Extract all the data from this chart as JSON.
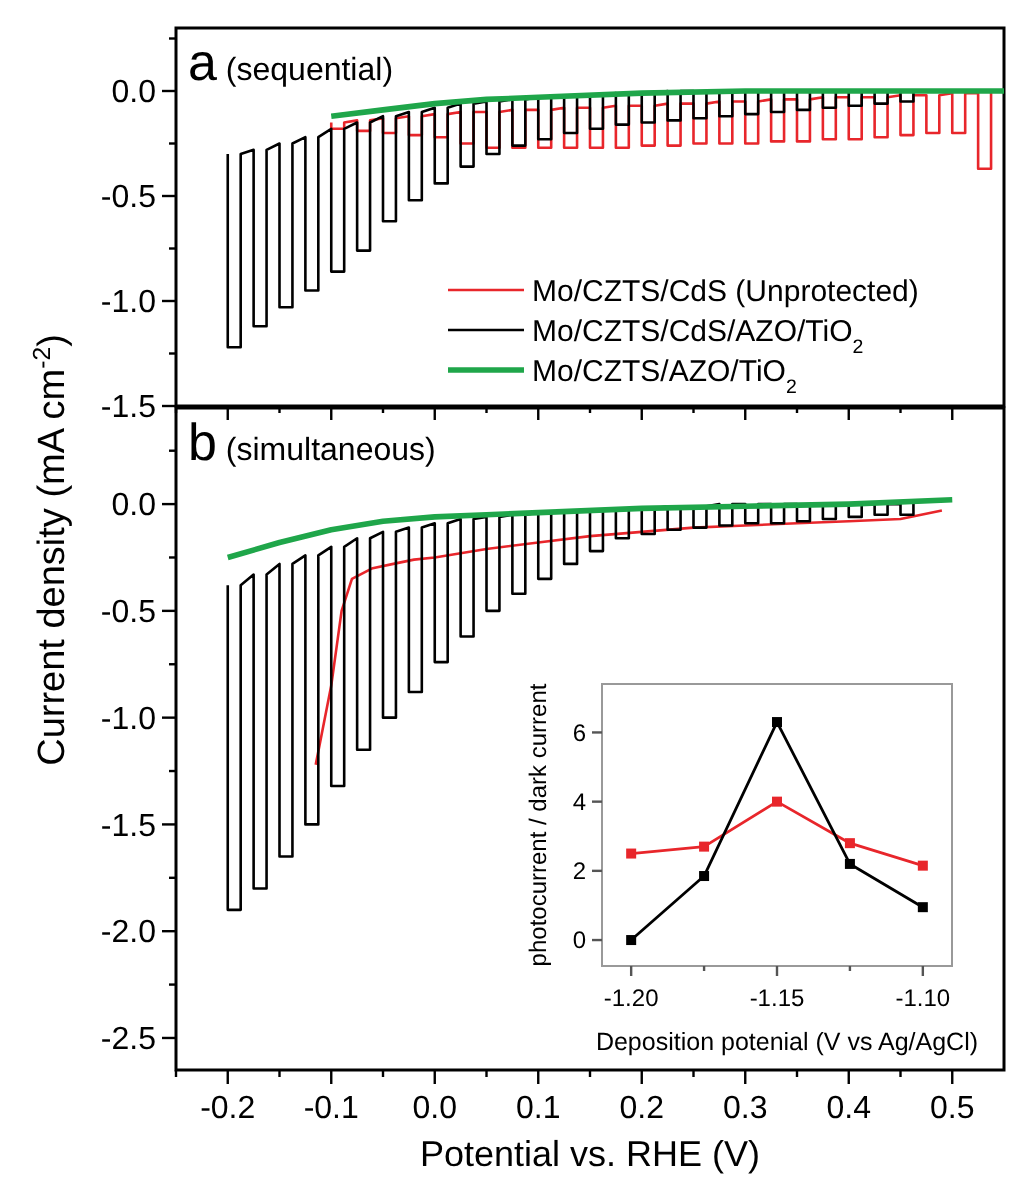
{
  "chart_data": [
    {
      "type": "line",
      "title": "a (sequential)",
      "xlim": [
        -0.25,
        0.55
      ],
      "ylim": [
        -1.5,
        0.3
      ],
      "tick_labels": "y",
      "legend": "bottom right",
      "xticks": [
        {
          "value": -0.25,
          "label": null
        },
        -0.2,
        {
          "value": -0.15,
          "label": null
        },
        -0.1,
        {
          "value": -0.05,
          "label": null
        },
        0,
        {
          "value": 0.05,
          "label": null
        },
        0.1,
        {
          "value": 0.15,
          "label": null
        },
        0.2,
        {
          "value": 0.25,
          "label": null
        },
        0.3,
        {
          "value": 0.35,
          "label": null
        },
        0.4,
        {
          "value": 0.45,
          "label": null
        },
        0.5
      ],
      "yticks": [
        {
          "value": 0.25,
          "label": null
        },
        {
          "value": 0,
          "label": "0.0"
        },
        {
          "value": -0.25,
          "label": null
        },
        {
          "value": -0.5,
          "label": "-0.5"
        },
        {
          "value": -0.75,
          "label": null
        },
        {
          "value": -1,
          "label": "-1.0"
        },
        {
          "value": -1.25,
          "label": null
        },
        {
          "value": -1.5,
          "label": "-1.5"
        }
      ],
      "series": [
        {
          "name": "Mo/CZTS/CdS (Unprotected)",
          "color": "#e8262b",
          "x": [
            -0.1,
            -0.1,
            -0.0875,
            -0.0875,
            -0.075,
            -0.075,
            -0.0625,
            -0.0625,
            -0.05,
            -0.05,
            -0.0375,
            -0.0375,
            -0.025,
            -0.025,
            -0.0125,
            -0.0125,
            0,
            0,
            0.0125,
            0.0125,
            0.025,
            0.025,
            0.0375,
            0.0375,
            0.05,
            0.05,
            0.0625,
            0.0625,
            0.075,
            0.075,
            0.0875,
            0.0875,
            0.1,
            0.1,
            0.1125,
            0.1125,
            0.125,
            0.125,
            0.1375,
            0.1375,
            0.15,
            0.15,
            0.1625,
            0.1625,
            0.175,
            0.175,
            0.1875,
            0.1875,
            0.2,
            0.2,
            0.2125,
            0.2125,
            0.225,
            0.225,
            0.2375,
            0.2375,
            0.25,
            0.25,
            0.2625,
            0.2625,
            0.275,
            0.275,
            0.2875,
            0.2875,
            0.3,
            0.3,
            0.3125,
            0.3125,
            0.325,
            0.325,
            0.3375,
            0.3375,
            0.35,
            0.35,
            0.3625,
            0.3625,
            0.375,
            0.375,
            0.3875,
            0.3875,
            0.4,
            0.4,
            0.4125,
            0.4125,
            0.425,
            0.425,
            0.4375,
            0.4375,
            0.45,
            0.45,
            0.4625,
            0.4625,
            0.475,
            0.475,
            0.4875,
            0.4875,
            0.5,
            0.5,
            0.5125,
            0.5125,
            0.525,
            0.525,
            0.5375,
            0.5375
          ],
          "values": [
            -0.15,
            -0.18,
            -0.18,
            -0.15,
            -0.14,
            -0.19,
            -0.19,
            -0.14,
            -0.13,
            -0.2,
            -0.2,
            -0.13,
            -0.12,
            -0.21,
            -0.21,
            -0.12,
            -0.11,
            -0.22,
            -0.22,
            -0.11,
            -0.1,
            -0.25,
            -0.25,
            -0.1,
            -0.1,
            -0.27,
            -0.27,
            -0.1,
            -0.09,
            -0.27,
            -0.27,
            -0.09,
            -0.09,
            -0.27,
            -0.27,
            -0.09,
            -0.08,
            -0.27,
            -0.27,
            -0.08,
            -0.08,
            -0.27,
            -0.27,
            -0.08,
            -0.07,
            -0.27,
            -0.27,
            -0.07,
            -0.07,
            -0.26,
            -0.26,
            -0.07,
            -0.06,
            -0.26,
            -0.26,
            -0.06,
            -0.06,
            -0.25,
            -0.25,
            -0.06,
            -0.05,
            -0.25,
            -0.25,
            -0.05,
            -0.05,
            -0.25,
            -0.25,
            -0.05,
            -0.04,
            -0.24,
            -0.24,
            -0.04,
            -0.04,
            -0.24,
            -0.24,
            -0.04,
            -0.03,
            -0.23,
            -0.23,
            -0.03,
            -0.03,
            -0.23,
            -0.23,
            -0.03,
            -0.03,
            -0.22,
            -0.22,
            -0.03,
            -0.02,
            -0.21,
            -0.21,
            -0.02,
            -0.02,
            -0.2,
            -0.2,
            -0.02,
            -0.01,
            -0.2,
            -0.2,
            -0.01,
            -0.01,
            -0.37,
            -0.37,
            -0.01
          ]
        },
        {
          "name": "Mo/CZTS/CdS/AZO/TiO$_{2}$",
          "color": "#000000",
          "x": [
            -0.2,
            -0.2,
            -0.1875,
            -0.1875,
            -0.175,
            -0.175,
            -0.1625,
            -0.1625,
            -0.15,
            -0.15,
            -0.1375,
            -0.1375,
            -0.125,
            -0.125,
            -0.1125,
            -0.1125,
            -0.1,
            -0.1,
            -0.0875,
            -0.0875,
            -0.075,
            -0.075,
            -0.0625,
            -0.0625,
            -0.05,
            -0.05,
            -0.0375,
            -0.0375,
            -0.025,
            -0.025,
            -0.0125,
            -0.0125,
            0,
            0,
            0.0125,
            0.0125,
            0.025,
            0.025,
            0.0375,
            0.0375,
            0.05,
            0.05,
            0.0625,
            0.0625,
            0.075,
            0.075,
            0.0875,
            0.0875,
            0.1,
            0.1,
            0.1125,
            0.1125,
            0.125,
            0.125,
            0.1375,
            0.1375,
            0.15,
            0.15,
            0.1625,
            0.1625,
            0.175,
            0.175,
            0.1875,
            0.1875,
            0.2,
            0.2,
            0.2125,
            0.2125,
            0.225,
            0.225,
            0.2375,
            0.2375,
            0.25,
            0.25,
            0.2625,
            0.2625,
            0.275,
            0.275,
            0.2875,
            0.2875,
            0.3,
            0.3,
            0.3125,
            0.3125,
            0.325,
            0.325,
            0.3375,
            0.3375,
            0.35,
            0.35,
            0.3625,
            0.3625,
            0.375,
            0.375,
            0.3875,
            0.3875,
            0.4,
            0.4,
            0.4125,
            0.4125,
            0.425,
            0.425,
            0.4375,
            0.4375,
            0.45,
            0.45,
            0.4625,
            0.4625
          ],
          "values": [
            -0.3,
            -1.22,
            -1.22,
            -0.3,
            -0.28,
            -1.12,
            -1.12,
            -0.28,
            -0.25,
            -1.03,
            -1.03,
            -0.25,
            -0.22,
            -0.95,
            -0.95,
            -0.22,
            -0.18,
            -0.86,
            -0.86,
            -0.18,
            -0.15,
            -0.76,
            -0.76,
            -0.15,
            -0.12,
            -0.62,
            -0.62,
            -0.12,
            -0.1,
            -0.52,
            -0.52,
            -0.1,
            -0.08,
            -0.44,
            -0.44,
            -0.08,
            -0.06,
            -0.36,
            -0.36,
            -0.06,
            -0.05,
            -0.3,
            -0.3,
            -0.05,
            -0.04,
            -0.26,
            -0.26,
            -0.04,
            -0.03,
            -0.23,
            -0.23,
            -0.03,
            -0.02,
            -0.2,
            -0.2,
            -0.02,
            -0.02,
            -0.18,
            -0.18,
            -0.02,
            -0.01,
            -0.16,
            -0.16,
            -0.01,
            -0.01,
            -0.15,
            -0.15,
            -0.01,
            0,
            -0.14,
            -0.14,
            0,
            0,
            -0.13,
            -0.13,
            0,
            0,
            -0.12,
            -0.12,
            0,
            0,
            -0.11,
            -0.11,
            0,
            0,
            -0.1,
            -0.1,
            0,
            0,
            -0.09,
            -0.09,
            0,
            0,
            -0.08,
            -0.08,
            0,
            0,
            -0.07,
            -0.07,
            0,
            0,
            -0.06,
            -0.06,
            0,
            0,
            -0.05,
            -0.05,
            0
          ]
        },
        {
          "name": "Mo/CZTS/AZO/TiO$_{2}$",
          "color": "#1fa64a",
          "x": [
            -0.1,
            -0.05,
            0,
            0.05,
            0.1,
            0.2,
            0.3,
            0.4,
            0.55
          ],
          "values": [
            -0.12,
            -0.09,
            -0.06,
            -0.04,
            -0.03,
            -0.01,
            0,
            0,
            0
          ]
        }
      ]
    },
    {
      "type": "line",
      "title": "b (simultaneous)",
      "xlabel": "Potential vs. RHE (V)",
      "ylabel": "Current density (mA cm$^{-2}$)",
      "xlim": [
        -0.25,
        0.55
      ],
      "ylim": [
        -2.65,
        0.45
      ],
      "xticks": [
        {
          "value": -0.25,
          "label": null
        },
        {
          "value": -0.2,
          "label": "-0.2"
        },
        {
          "value": -0.15,
          "label": null
        },
        {
          "value": -0.1,
          "label": "-0.1"
        },
        {
          "value": -0.05,
          "label": null
        },
        {
          "value": 0,
          "label": "0.0"
        },
        {
          "value": 0.05,
          "label": null
        },
        {
          "value": 0.1,
          "label": "0.1"
        },
        {
          "value": 0.15,
          "label": null
        },
        {
          "value": 0.2,
          "label": "0.2"
        },
        {
          "value": 0.25,
          "label": null
        },
        {
          "value": 0.3,
          "label": "0.3"
        },
        {
          "value": 0.35,
          "label": null
        },
        {
          "value": 0.4,
          "label": "0.4"
        },
        {
          "value": 0.45,
          "label": null
        },
        {
          "value": 0.5,
          "label": "0.5"
        }
      ],
      "yticks": [
        {
          "value": 0.25,
          "label": null
        },
        {
          "value": 0,
          "label": "0.0"
        },
        {
          "value": -0.25,
          "label": null
        },
        {
          "value": -0.5,
          "label": "-0.5"
        },
        {
          "value": -0.75,
          "label": null
        },
        {
          "value": -1,
          "label": "-1.0"
        },
        {
          "value": -1.25,
          "label": null
        },
        {
          "value": -1.5,
          "label": "-1.5"
        },
        {
          "value": -1.75,
          "label": null
        },
        {
          "value": -2,
          "label": "-2.0"
        },
        {
          "value": -2.25,
          "label": null
        },
        {
          "value": -2.5,
          "label": "-2.5"
        }
      ],
      "series": [
        {
          "color": "#e8262b",
          "x": [
            -0.115,
            -0.1,
            -0.09,
            -0.08,
            -0.06,
            -0.04,
            -0.02,
            0,
            0.05,
            0.1,
            0.15,
            0.2,
            0.25,
            0.3,
            0.35,
            0.4,
            0.45,
            0.49
          ],
          "values": [
            -1.22,
            -0.85,
            -0.5,
            -0.35,
            -0.3,
            -0.28,
            -0.26,
            -0.25,
            -0.21,
            -0.18,
            -0.15,
            -0.13,
            -0.11,
            -0.1,
            -0.09,
            -0.08,
            -0.07,
            -0.03
          ]
        },
        {
          "color": "#000000",
          "x": [
            -0.2,
            -0.2,
            -0.1875,
            -0.1875,
            -0.175,
            -0.175,
            -0.1625,
            -0.1625,
            -0.15,
            -0.15,
            -0.1375,
            -0.1375,
            -0.125,
            -0.125,
            -0.1125,
            -0.1125,
            -0.1,
            -0.1,
            -0.0875,
            -0.0875,
            -0.075,
            -0.075,
            -0.0625,
            -0.0625,
            -0.05,
            -0.05,
            -0.0375,
            -0.0375,
            -0.025,
            -0.025,
            -0.0125,
            -0.0125,
            0,
            0,
            0.0125,
            0.0125,
            0.025,
            0.025,
            0.0375,
            0.0375,
            0.05,
            0.05,
            0.0625,
            0.0625,
            0.075,
            0.075,
            0.0875,
            0.0875,
            0.1,
            0.1,
            0.1125,
            0.1125,
            0.125,
            0.125,
            0.1375,
            0.1375,
            0.15,
            0.15,
            0.1625,
            0.1625,
            0.175,
            0.175,
            0.1875,
            0.1875,
            0.2,
            0.2,
            0.2125,
            0.2125,
            0.225,
            0.225,
            0.2375,
            0.2375,
            0.25,
            0.25,
            0.2625,
            0.2625,
            0.275,
            0.275,
            0.2875,
            0.2875,
            0.3,
            0.3,
            0.3125,
            0.3125,
            0.325,
            0.325,
            0.3375,
            0.3375,
            0.35,
            0.35,
            0.3625,
            0.3625,
            0.375,
            0.375,
            0.3875,
            0.3875,
            0.4,
            0.4,
            0.4125,
            0.4125,
            0.425,
            0.425,
            0.4375,
            0.4375,
            0.45,
            0.45,
            0.4625,
            0.4625
          ],
          "values": [
            -0.38,
            -1.9,
            -1.9,
            -0.38,
            -0.33,
            -1.8,
            -1.8,
            -0.33,
            -0.28,
            -1.65,
            -1.65,
            -0.28,
            -0.24,
            -1.5,
            -1.5,
            -0.24,
            -0.2,
            -1.32,
            -1.32,
            -0.2,
            -0.16,
            -1.15,
            -1.15,
            -0.16,
            -0.13,
            -1,
            -1,
            -0.13,
            -0.11,
            -0.88,
            -0.88,
            -0.11,
            -0.09,
            -0.74,
            -0.74,
            -0.09,
            -0.07,
            -0.62,
            -0.62,
            -0.07,
            -0.06,
            -0.5,
            -0.5,
            -0.06,
            -0.05,
            -0.42,
            -0.42,
            -0.05,
            -0.04,
            -0.35,
            -0.35,
            -0.04,
            -0.03,
            -0.28,
            -0.28,
            -0.03,
            -0.03,
            -0.22,
            -0.22,
            -0.03,
            -0.02,
            -0.16,
            -0.16,
            -0.02,
            -0.02,
            -0.14,
            -0.14,
            -0.02,
            -0.01,
            -0.12,
            -0.12,
            -0.01,
            -0.01,
            -0.11,
            -0.11,
            -0.01,
            0,
            -0.1,
            -0.1,
            0,
            0,
            -0.09,
            -0.09,
            0,
            0,
            -0.09,
            -0.09,
            0,
            0,
            -0.08,
            -0.08,
            0,
            0,
            -0.07,
            -0.07,
            0,
            0,
            -0.06,
            -0.06,
            0,
            0,
            -0.05,
            -0.05,
            0,
            0,
            -0.05,
            -0.05,
            0
          ]
        },
        {
          "color": "#1fa64a",
          "x": [
            -0.2,
            -0.15,
            -0.1,
            -0.05,
            0,
            0.05,
            0.1,
            0.2,
            0.3,
            0.4,
            0.5
          ],
          "values": [
            -0.25,
            -0.18,
            -0.12,
            -0.08,
            -0.06,
            -0.05,
            -0.04,
            -0.02,
            -0.01,
            0,
            0.02
          ]
        }
      ]
    },
    {
      "type": "line",
      "xlabel": "Deposition potenial (V  vs Ag/AgCl)",
      "ylabel": "photocurrent / dark current",
      "xlim": [
        -1.21,
        -1.09
      ],
      "ylim": [
        -0.75,
        7.4
      ],
      "marker": "square",
      "xticks": [
        {
          "value": -1.2,
          "label": "-1.20"
        },
        {
          "value": -1.175,
          "label": null
        },
        {
          "value": -1.15,
          "label": "-1.15"
        },
        {
          "value": -1.125,
          "label": null
        },
        {
          "value": -1.1,
          "label": "-1.10"
        }
      ],
      "yticks": [
        0,
        2,
        4,
        6
      ],
      "x": [
        -1.2,
        -1.175,
        -1.15,
        -1.125,
        -1.1
      ],
      "series": [
        {
          "color": "#e8262b",
          "values": [
            2.5,
            2.7,
            4.0,
            2.8,
            2.15
          ]
        },
        {
          "color": "#000000",
          "values": [
            0,
            1.85,
            6.3,
            2.2,
            0.95
          ]
        }
      ]
    }
  ]
}
